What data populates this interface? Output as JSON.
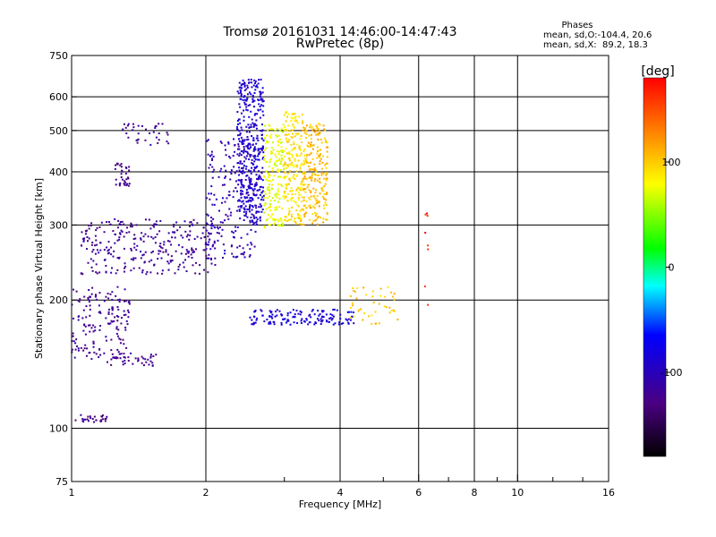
{
  "chart_data": {
    "type": "scatter",
    "title": "Tromsø 20161031 14:46:00-14:47:43",
    "subtitle": "RwPretec (8p)",
    "xlabel": "Frequency [MHz]",
    "ylabel": "Stationary phase Virtual Height [km]",
    "x_scale": "log",
    "y_scale": "log",
    "xlim": [
      1,
      16
    ],
    "ylim": [
      75,
      750
    ],
    "x_ticks": [
      1,
      2,
      4,
      6,
      8,
      10,
      16
    ],
    "x_minor_ticks": [
      3,
      5,
      7,
      9,
      12,
      14
    ],
    "y_ticks": [
      75,
      100,
      200,
      300,
      400,
      500,
      600,
      750
    ],
    "x_gridlines": [
      2,
      4,
      6,
      8,
      10
    ],
    "y_gridlines": [
      100,
      200,
      300,
      400,
      500,
      600
    ],
    "grid": true,
    "colorbar": {
      "label": "[deg]",
      "range": [
        -180,
        180
      ],
      "ticks": [
        -100,
        0,
        100
      ],
      "colormap": "rainbow (black-purple-blue-cyan-green-yellow-orange-red)"
    },
    "phase_stats": {
      "heading": "Phases",
      "line1": "mean, sd,O:-104.4, 20.6",
      "line2": "mean, sd,X:  89.2, 18.3"
    },
    "series": [
      {
        "mode": "O",
        "phase_mean": -104.4,
        "clusters": [
          {
            "f_min": 1.02,
            "f_max": 1.2,
            "h_min": 103,
            "h_max": 108,
            "n": 28,
            "phase": -125
          },
          {
            "f_min": 1.0,
            "f_max": 1.35,
            "h_min": 145,
            "h_max": 215,
            "n": 160,
            "phase": -120
          },
          {
            "f_min": 1.2,
            "f_max": 1.55,
            "h_min": 140,
            "h_max": 150,
            "n": 40,
            "phase": -125
          },
          {
            "f_min": 1.05,
            "f_max": 2.1,
            "h_min": 230,
            "h_max": 310,
            "n": 280,
            "phase": -118
          },
          {
            "f_min": 2.0,
            "f_max": 2.6,
            "h_min": 250,
            "h_max": 480,
            "n": 220,
            "phase": -105
          },
          {
            "f_min": 1.25,
            "f_max": 1.35,
            "h_min": 370,
            "h_max": 420,
            "n": 35,
            "phase": -125
          },
          {
            "f_min": 1.3,
            "f_max": 1.65,
            "h_min": 460,
            "h_max": 520,
            "n": 35,
            "phase": -122
          },
          {
            "f_min": 2.35,
            "f_max": 2.7,
            "h_min": 300,
            "h_max": 660,
            "n": 380,
            "phase": -90
          },
          {
            "f_min": 2.5,
            "f_max": 4.3,
            "h_min": 175,
            "h_max": 190,
            "n": 140,
            "phase": -85
          }
        ]
      },
      {
        "mode": "X",
        "phase_mean": 89.2,
        "clusters": [
          {
            "f_min": 2.7,
            "f_max": 3.0,
            "h_min": 295,
            "h_max": 520,
            "n": 180,
            "phase": 75
          },
          {
            "f_min": 3.0,
            "f_max": 3.3,
            "h_min": 300,
            "h_max": 560,
            "n": 200,
            "phase": 90
          },
          {
            "f_min": 3.3,
            "f_max": 3.75,
            "h_min": 300,
            "h_max": 520,
            "n": 240,
            "phase": 105
          },
          {
            "f_min": 4.2,
            "f_max": 5.4,
            "h_min": 175,
            "h_max": 215,
            "n": 45,
            "phase": 100
          },
          {
            "f_min": 6.2,
            "f_max": 6.3,
            "h_min": 190,
            "h_max": 330,
            "n": 8,
            "phase": 170
          }
        ]
      }
    ]
  }
}
